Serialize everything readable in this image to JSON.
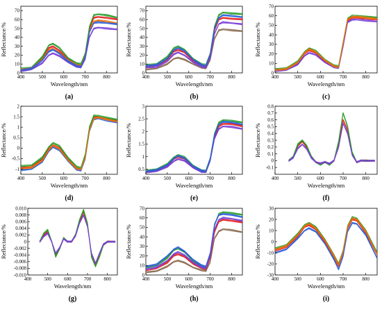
{
  "figure": {
    "background": "#ffffff"
  },
  "chart_data": [
    {
      "panel_label": "(a)",
      "type": "line",
      "xlabel": "Wavelength/nm",
      "ylabel": "Reflectance/%",
      "xlim": [
        400,
        850
      ],
      "ylim": [
        0,
        75
      ],
      "xticks": [
        400,
        500,
        600,
        700,
        800
      ],
      "yticks": [
        0,
        10,
        20,
        30,
        40,
        50,
        60,
        70
      ],
      "x": [
        400,
        450,
        500,
        530,
        550,
        580,
        620,
        660,
        680,
        700,
        720,
        740,
        760,
        800,
        850
      ],
      "series": [
        {
          "values": [
            3,
            5,
            16,
            28,
            30,
            25,
            15,
            9,
            8,
            20,
            50,
            62,
            63,
            62,
            60
          ],
          "color": "#e32121"
        },
        {
          "values": [
            5,
            6,
            18,
            31,
            33,
            28,
            17,
            11,
            10,
            22,
            52,
            65,
            66,
            65,
            62
          ],
          "color": "#2a9d2a"
        },
        {
          "values": [
            2,
            4,
            11,
            20,
            22,
            19,
            12,
            7,
            6,
            16,
            40,
            50,
            51,
            50,
            49
          ],
          "color": "#7a3fd6"
        },
        {
          "values": [
            4,
            5,
            15,
            26,
            27,
            23,
            14,
            9,
            8,
            19,
            47,
            58,
            59,
            58,
            56
          ],
          "color": "#e9720c"
        },
        {
          "values": [
            3,
            5,
            14,
            24,
            26,
            22,
            13,
            8,
            7,
            18,
            46,
            56,
            57,
            56,
            55
          ],
          "color": "#2b5fd9"
        }
      ]
    },
    {
      "panel_label": "(b)",
      "type": "line",
      "xlabel": "Wavelength/nm",
      "ylabel": "Reflectance/%",
      "xlim": [
        400,
        850
      ],
      "ylim": [
        0,
        75
      ],
      "xticks": [
        400,
        500,
        600,
        700,
        800
      ],
      "yticks": [
        0,
        10,
        20,
        30,
        40,
        50,
        60,
        70
      ],
      "x": [
        400,
        450,
        500,
        530,
        550,
        580,
        620,
        660,
        680,
        700,
        720,
        740,
        760,
        800,
        850
      ],
      "series": [
        {
          "values": [
            7,
            8,
            15,
            24,
            26,
            23,
            14,
            8,
            7,
            20,
            48,
            60,
            62,
            61,
            60
          ],
          "color": "#e32121"
        },
        {
          "values": [
            9,
            10,
            18,
            28,
            30,
            26,
            16,
            10,
            9,
            22,
            52,
            65,
            68,
            67,
            66
          ],
          "color": "#2a9d2a"
        },
        {
          "values": [
            4,
            5,
            10,
            16,
            17,
            15,
            10,
            6,
            5,
            15,
            38,
            48,
            49,
            48,
            47
          ],
          "color": "#8a6a50"
        },
        {
          "values": [
            8,
            9,
            16,
            26,
            28,
            25,
            15,
            9,
            8,
            21,
            50,
            62,
            65,
            64,
            63
          ],
          "color": "#2b5fd9"
        },
        {
          "values": [
            6,
            7,
            13,
            21,
            23,
            20,
            12,
            7,
            6,
            18,
            44,
            55,
            57,
            56,
            55
          ],
          "color": "#7a3fd6"
        }
      ]
    },
    {
      "panel_label": "(c)",
      "type": "line",
      "xlabel": "Wavelength/nm",
      "ylabel": "Reflectance/%",
      "xlim": [
        400,
        850
      ],
      "ylim": [
        0,
        70
      ],
      "xticks": [
        400,
        500,
        600,
        700,
        800
      ],
      "yticks": [
        0,
        10,
        20,
        30,
        40,
        50,
        60,
        70
      ],
      "x": [
        400,
        450,
        500,
        530,
        550,
        580,
        620,
        660,
        680,
        700,
        720,
        740,
        760,
        800,
        850
      ],
      "series": [
        {
          "values": [
            3,
            4,
            10,
            20,
            24,
            21,
            12,
            7,
            6,
            30,
            55,
            58,
            58,
            57,
            56
          ],
          "color": "#e32121"
        },
        {
          "values": [
            4,
            5,
            12,
            22,
            26,
            23,
            14,
            8,
            7,
            32,
            57,
            60,
            60,
            59,
            58
          ],
          "color": "#2a9d2a"
        },
        {
          "values": [
            2,
            3,
            9,
            18,
            21,
            19,
            11,
            6,
            5,
            28,
            53,
            56,
            56,
            55,
            54
          ],
          "color": "#7a3fd6"
        },
        {
          "values": [
            3,
            4,
            11,
            21,
            25,
            22,
            13,
            7,
            6,
            31,
            56,
            59,
            59,
            58,
            57
          ],
          "color": "#e9720c"
        }
      ]
    },
    {
      "panel_label": "(d)",
      "type": "line",
      "xlabel": "Wavelength/nm",
      "ylabel": "Reflectance/%",
      "xlim": [
        400,
        850
      ],
      "ylim": [
        -1.25,
        2.0
      ],
      "xticks": [
        400,
        500,
        600,
        700,
        800
      ],
      "yticks": [
        -1.0,
        -0.5,
        0.0,
        0.5,
        1.0,
        1.5,
        2.0
      ],
      "x": [
        400,
        450,
        500,
        530,
        550,
        580,
        620,
        660,
        680,
        700,
        720,
        740,
        760,
        800,
        850
      ],
      "series": [
        {
          "values": [
            -0.95,
            -0.9,
            -0.55,
            -0.05,
            0.15,
            0.0,
            -0.55,
            -0.95,
            -1.0,
            -0.4,
            0.9,
            1.45,
            1.5,
            1.4,
            1.3
          ],
          "color": "#e32121"
        },
        {
          "values": [
            -0.85,
            -0.82,
            -0.45,
            0.05,
            0.25,
            0.1,
            -0.45,
            -0.88,
            -0.95,
            -0.3,
            1.0,
            1.55,
            1.55,
            1.45,
            1.35
          ],
          "color": "#2a9d2a"
        },
        {
          "values": [
            -1.05,
            -1.0,
            -0.65,
            -0.15,
            0.05,
            -0.1,
            -0.62,
            -1.02,
            -1.08,
            -0.5,
            0.8,
            1.38,
            1.42,
            1.32,
            1.22
          ],
          "color": "#2b5fd9"
        },
        {
          "values": [
            -0.98,
            -0.93,
            -0.6,
            -0.08,
            0.12,
            -0.03,
            -0.58,
            -0.97,
            -1.02,
            -0.45,
            0.85,
            1.4,
            1.47,
            1.37,
            1.27
          ],
          "color": "#e9720c"
        }
      ]
    },
    {
      "panel_label": "(e)",
      "type": "line",
      "xlabel": "Wavelength/nm",
      "ylabel": "Reflectance/%",
      "xlim": [
        400,
        850
      ],
      "ylim": [
        0.3,
        3.0
      ],
      "xticks": [
        400,
        500,
        600,
        700,
        800
      ],
      "yticks": [
        0.5,
        1.0,
        1.5,
        2.0,
        2.5,
        3.0
      ],
      "x": [
        400,
        450,
        500,
        530,
        550,
        580,
        620,
        660,
        680,
        700,
        720,
        740,
        760,
        800,
        850
      ],
      "series": [
        {
          "values": [
            0.4,
            0.45,
            0.65,
            0.9,
            1.0,
            0.92,
            0.6,
            0.42,
            0.4,
            0.9,
            1.8,
            2.2,
            2.3,
            2.3,
            2.2
          ],
          "color": "#e32121"
        },
        {
          "values": [
            0.45,
            0.5,
            0.7,
            0.97,
            1.07,
            0.98,
            0.65,
            0.46,
            0.44,
            0.95,
            1.9,
            2.35,
            2.45,
            2.42,
            2.35
          ],
          "color": "#2a9d2a"
        },
        {
          "values": [
            0.38,
            0.42,
            0.6,
            0.82,
            0.9,
            0.84,
            0.56,
            0.4,
            0.38,
            0.85,
            1.7,
            2.1,
            2.2,
            2.18,
            2.1
          ],
          "color": "#7a3fd6"
        },
        {
          "values": [
            0.42,
            0.47,
            0.67,
            0.93,
            1.03,
            0.95,
            0.62,
            0.44,
            0.42,
            0.92,
            1.85,
            2.28,
            2.38,
            2.36,
            2.28
          ],
          "color": "#2b5fd9"
        }
      ]
    },
    {
      "panel_label": "(f)",
      "type": "line",
      "xlabel": "Wavelength/nm",
      "ylabel": "Reflectance/%",
      "xlim": [
        400,
        850
      ],
      "ylim": [
        -0.2,
        0.8
      ],
      "xticks": [
        400,
        500,
        600,
        700,
        800
      ],
      "yticks": [
        -0.1,
        0.0,
        0.1,
        0.2,
        0.3,
        0.4,
        0.5,
        0.6,
        0.7,
        0.8
      ],
      "x": [
        460,
        480,
        500,
        520,
        540,
        560,
        580,
        600,
        620,
        640,
        660,
        680,
        700,
        720,
        740,
        760,
        780,
        800,
        840
      ],
      "series": [
        {
          "values": [
            0.0,
            0.05,
            0.22,
            0.28,
            0.2,
            0.05,
            -0.02,
            -0.05,
            -0.02,
            -0.05,
            0.0,
            0.25,
            0.6,
            0.45,
            0.1,
            -0.02,
            0.0,
            0.0,
            0.0
          ],
          "color": "#e32121"
        },
        {
          "values": [
            0.0,
            0.06,
            0.24,
            0.3,
            0.22,
            0.06,
            -0.02,
            -0.06,
            -0.02,
            -0.06,
            0.0,
            0.28,
            0.7,
            0.5,
            0.12,
            -0.02,
            0.0,
            0.0,
            0.0
          ],
          "color": "#2a9d2a"
        },
        {
          "values": [
            0.0,
            0.04,
            0.18,
            0.24,
            0.17,
            0.04,
            -0.02,
            -0.04,
            -0.02,
            -0.04,
            0.0,
            0.2,
            0.55,
            0.4,
            0.08,
            -0.02,
            0.0,
            0.0,
            0.0
          ],
          "color": "#7a3fd6"
        }
      ]
    },
    {
      "panel_label": "(g)",
      "type": "line",
      "xlabel": "Wavelength/nm",
      "ylabel": "Reflectance/%",
      "xlim": [
        400,
        850
      ],
      "ylim": [
        -0.01,
        0.01
      ],
      "xticks": [
        400,
        500,
        600,
        700,
        800
      ],
      "yticks": [
        -0.01,
        -0.008,
        -0.006,
        -0.004,
        -0.002,
        0.0,
        0.002,
        0.004,
        0.006,
        0.008,
        0.01
      ],
      "x": [
        460,
        480,
        500,
        520,
        540,
        560,
        580,
        600,
        620,
        640,
        660,
        680,
        700,
        720,
        740,
        760,
        780,
        800,
        840
      ],
      "series": [
        {
          "values": [
            0.0,
            0.002,
            0.003,
            0.0,
            -0.004,
            -0.002,
            0.001,
            0.0,
            0.0,
            0.002,
            0.006,
            0.009,
            0.005,
            -0.004,
            -0.007,
            -0.004,
            -0.001,
            0.0,
            0.0
          ],
          "color": "#e32121"
        },
        {
          "values": [
            0.0,
            0.0025,
            0.0035,
            0.0,
            -0.0045,
            -0.0022,
            0.0012,
            0.0,
            0.0,
            0.0022,
            0.0065,
            0.0095,
            0.0055,
            -0.0045,
            -0.0075,
            -0.0045,
            -0.001,
            0.0,
            0.0
          ],
          "color": "#2a9d2a"
        },
        {
          "values": [
            0.0,
            0.0015,
            0.0025,
            0.0,
            -0.0035,
            -0.0018,
            0.0008,
            0.0,
            0.0,
            0.0018,
            0.0055,
            0.008,
            0.0045,
            -0.0035,
            -0.0065,
            -0.0035,
            -0.0008,
            0.0,
            0.0
          ],
          "color": "#7a3fd6"
        }
      ]
    },
    {
      "panel_label": "(h)",
      "type": "line",
      "xlabel": "Wavelength/nm",
      "ylabel": "Reflectance/%",
      "xlim": [
        400,
        850
      ],
      "ylim": [
        0,
        70
      ],
      "xticks": [
        400,
        500,
        600,
        700,
        800
      ],
      "yticks": [
        0,
        10,
        20,
        30,
        40,
        50,
        60,
        70
      ],
      "x": [
        400,
        450,
        500,
        530,
        550,
        580,
        620,
        660,
        680,
        700,
        720,
        740,
        760,
        800,
        850
      ],
      "series": [
        {
          "values": [
            5,
            7,
            13,
            20,
            22,
            19,
            12,
            7,
            6,
            18,
            45,
            56,
            58,
            57,
            55
          ],
          "color": "#e32121"
        },
        {
          "values": [
            8,
            10,
            18,
            26,
            28,
            24,
            15,
            9,
            8,
            22,
            52,
            64,
            66,
            65,
            63
          ],
          "color": "#2a9d2a"
        },
        {
          "values": [
            3,
            4,
            9,
            14,
            15,
            13,
            8,
            5,
            4,
            14,
            38,
            46,
            48,
            47,
            45
          ],
          "color": "#8a6a50"
        },
        {
          "values": [
            9,
            11,
            20,
            27,
            29,
            25,
            16,
            10,
            9,
            23,
            53,
            63,
            64,
            63,
            61
          ],
          "color": "#2b5fd9"
        },
        {
          "values": [
            6,
            8,
            15,
            22,
            24,
            21,
            13,
            8,
            7,
            20,
            48,
            58,
            60,
            59,
            57
          ],
          "color": "#7a3fd6"
        }
      ]
    },
    {
      "panel_label": "(i)",
      "type": "line",
      "xlabel": "Wavelength/nm",
      "ylabel": "Reflectance/%",
      "xlim": [
        400,
        850
      ],
      "ylim": [
        -30,
        30
      ],
      "xticks": [
        400,
        500,
        600,
        700,
        800
      ],
      "yticks": [
        -30,
        -20,
        -10,
        0,
        10,
        20,
        30
      ],
      "x": [
        400,
        450,
        500,
        530,
        550,
        580,
        620,
        660,
        680,
        700,
        720,
        740,
        760,
        800,
        850
      ],
      "series": [
        {
          "values": [
            -8,
            -5,
            5,
            13,
            15,
            11,
            0,
            -14,
            -22,
            -10,
            12,
            20,
            19,
            8,
            -12
          ],
          "color": "#e32121"
        },
        {
          "values": [
            -6,
            -3,
            7,
            15,
            17,
            13,
            2,
            -12,
            -20,
            -8,
            14,
            22,
            21,
            10,
            -10
          ],
          "color": "#2a9d2a"
        },
        {
          "values": [
            -10,
            -7,
            3,
            10,
            12,
            9,
            -2,
            -16,
            -25,
            -13,
            9,
            17,
            16,
            6,
            -15
          ],
          "color": "#2b5fd9"
        },
        {
          "values": [
            -7,
            -4,
            6,
            14,
            16,
            12,
            1,
            -13,
            -21,
            -9,
            13,
            21,
            20,
            9,
            -11
          ],
          "color": "#e9720c"
        }
      ]
    }
  ]
}
